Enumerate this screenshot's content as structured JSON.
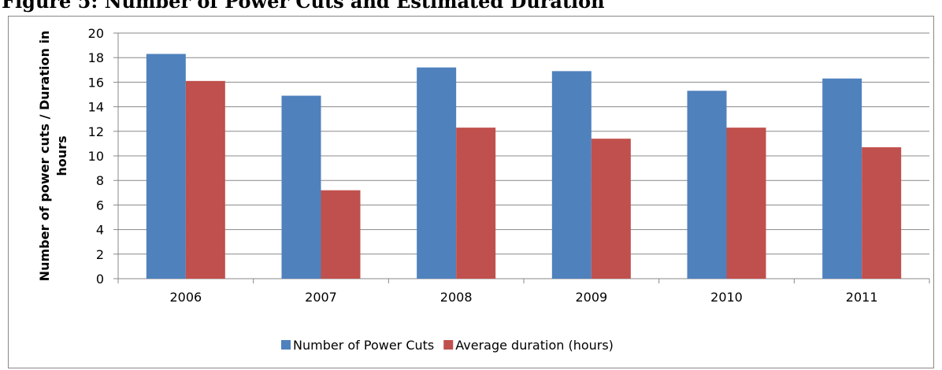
{
  "chart_data": {
    "type": "bar",
    "title": "Figure 5: Number of Power Cuts and Estimated Duration",
    "y_label": "Number of power cuts / Duration in hours",
    "categories": [
      "2006",
      "2007",
      "2008",
      "2009",
      "2010",
      "2011"
    ],
    "series": [
      {
        "name": "Number of Power Cuts",
        "color": "#4f81bd",
        "values": [
          18.3,
          14.9,
          17.2,
          16.9,
          15.3,
          16.3
        ]
      },
      {
        "name": "Average duration (hours)",
        "color": "#c0504d",
        "values": [
          16.1,
          7.2,
          12.3,
          11.4,
          12.3,
          10.7
        ]
      }
    ],
    "ylim": [
      0,
      20
    ],
    "yticks": [
      0,
      2,
      4,
      6,
      8,
      10,
      12,
      14,
      16,
      18,
      20
    ],
    "grid": true,
    "legend": "bottom"
  }
}
